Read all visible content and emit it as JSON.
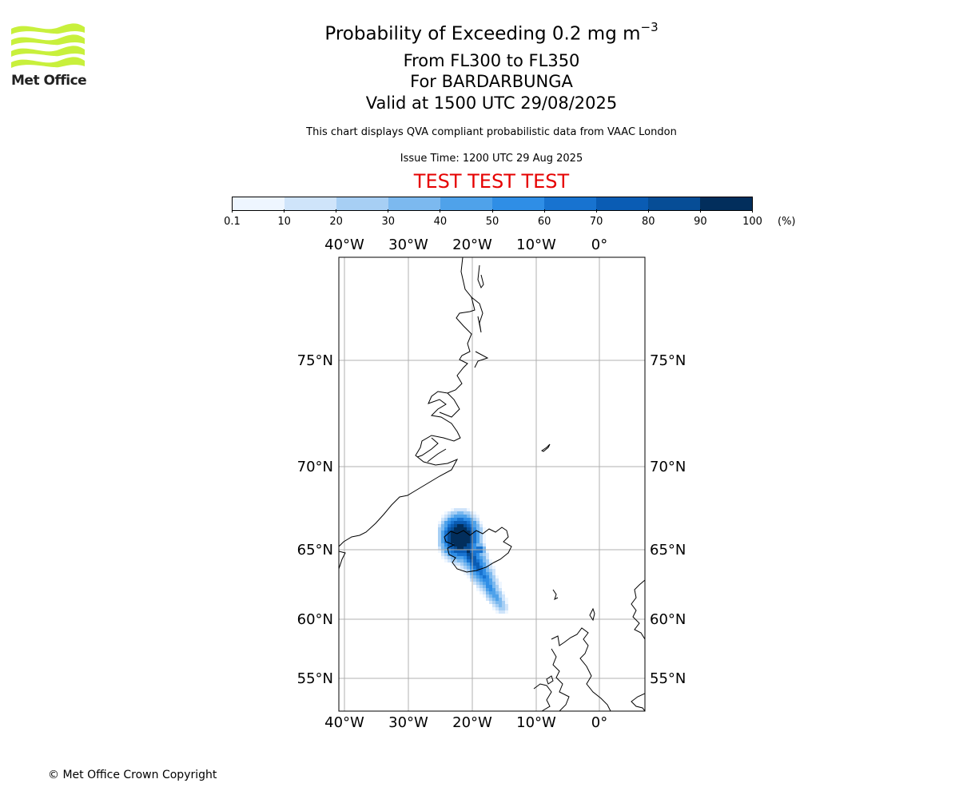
{
  "logo": {
    "text": "Met Office",
    "color": "#c8f03c"
  },
  "title": {
    "line1": "Probability of Exceeding 0.2 mg m",
    "line1_sup": "−3",
    "line2": "From FL300 to FL350",
    "line3": "For BARDARBUNGA",
    "line4": "Valid at 1500 UTC 29/08/2025"
  },
  "subtitle": "This chart displays QVA compliant probabilistic data from VAAC London",
  "issue_time": "Issue Time: 1200 UTC 29 Aug 2025",
  "test_banner": "TEST TEST TEST",
  "test_color": "#e60000",
  "colorbar": {
    "labels": [
      "0.1",
      "10",
      "20",
      "30",
      "40",
      "50",
      "60",
      "70",
      "80",
      "90",
      "100"
    ],
    "unit": "(%)",
    "colors": [
      "#eef6ff",
      "#cfe4fa",
      "#a7cff4",
      "#7cb9ef",
      "#4fa2ea",
      "#2f8ee6",
      "#1873d0",
      "#0a5cb4",
      "#064d96",
      "#022e5c"
    ]
  },
  "map": {
    "lon_labels": [
      "40°W",
      "30°W",
      "20°W",
      "10°W",
      "0°"
    ],
    "lat_labels": [
      "75°N",
      "70°N",
      "65°N",
      "60°N",
      "55°N"
    ],
    "grid_color": "#b0b0b0",
    "coast_color": "#000000"
  },
  "copyright": "© Met Office Crown Copyright"
}
